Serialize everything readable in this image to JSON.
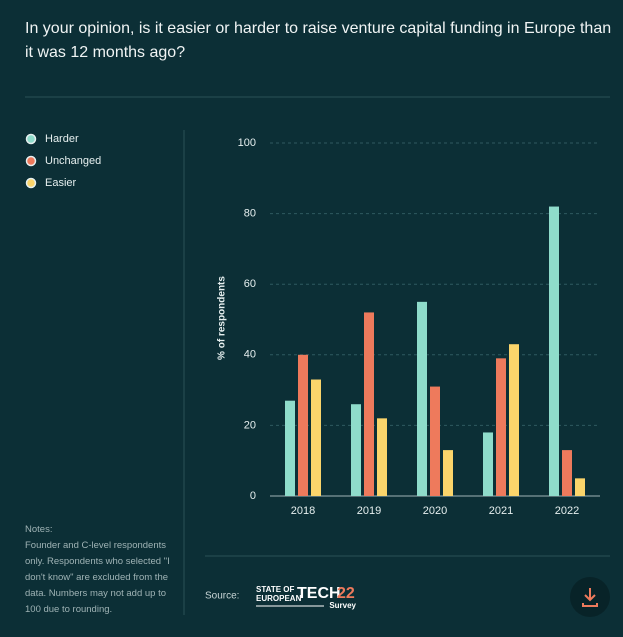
{
  "header": {
    "title": "In your opinion, is it easier or harder to raise venture capital funding in Europe than it was 12 months ago?"
  },
  "chart_data": {
    "type": "bar",
    "categories": [
      "2018",
      "2019",
      "2020",
      "2021",
      "2022"
    ],
    "series": [
      {
        "name": "Harder",
        "color": "#8fdccb",
        "values": [
          27,
          26,
          55,
          18,
          82
        ]
      },
      {
        "name": "Unchanged",
        "color": "#ee7a5c",
        "values": [
          40,
          52,
          31,
          39,
          13
        ]
      },
      {
        "name": "Easier",
        "color": "#fbd56b",
        "values": [
          33,
          22,
          13,
          43,
          5
        ]
      }
    ],
    "y_label": "% of respondents",
    "ylim": [
      0,
      100
    ],
    "yticks": [
      0,
      20,
      40,
      60,
      80,
      100
    ],
    "grid": true
  },
  "notes": {
    "heading": "Notes:",
    "text": "Founder and C-level respondents only. Respondents who selected \"I don't know\" are excluded from the data. Numbers may not add up to 100 due to rounding."
  },
  "footer": {
    "source_label": "Source:",
    "logo": {
      "line1": "STATE OF",
      "line2": "EUROPEAN",
      "tech": "TECH",
      "year": "22",
      "survey": "Survey"
    }
  }
}
